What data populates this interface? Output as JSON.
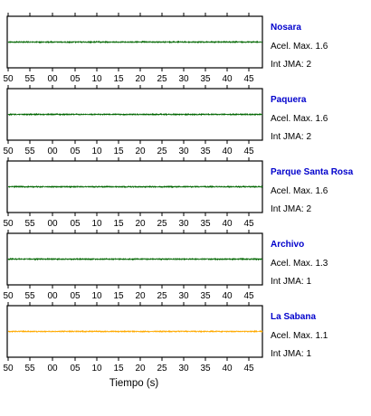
{
  "chart_data": {
    "type": "line",
    "xlabel": "Tiempo (s)",
    "x_ticks": [
      "50",
      "55",
      "00",
      "05",
      "10",
      "15",
      "20",
      "25",
      "30",
      "35",
      "40",
      "45"
    ],
    "acel_label": "Acel. Max.",
    "int_label": "Int JMA:",
    "grid": false,
    "series": [
      {
        "name": "Nosara",
        "acel_max": "1.6",
        "int_jma": "2",
        "color": "#006600",
        "onset": 18.5,
        "peak": 30,
        "profile": "sustained"
      },
      {
        "name": "Paquera",
        "acel_max": "1.6",
        "int_jma": "2",
        "color": "#006600",
        "onset": 28,
        "peak": 47,
        "profile": "growing"
      },
      {
        "name": "Parque Santa Rosa",
        "acel_max": "1.6",
        "int_jma": "2",
        "color": "#006600",
        "onset": 25.5,
        "peak": 28,
        "profile": "double"
      },
      {
        "name": "Archivo",
        "acel_max": "1.3",
        "int_jma": "1",
        "color": "#006600",
        "onset": 42.5,
        "peak": 43,
        "profile": "burst"
      },
      {
        "name": "La Sabana",
        "acel_max": "1.1",
        "int_jma": "1",
        "color": "#ffaa00",
        "onset": 40.5,
        "peak": 41,
        "profile": "burst"
      }
    ]
  }
}
